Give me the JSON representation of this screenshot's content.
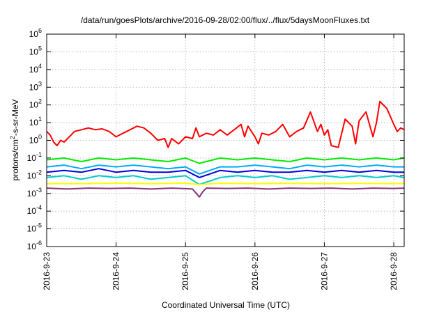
{
  "chart_data": {
    "type": "line",
    "title": "/data/run/goesPlots/archive/2016-09-28/02:00/flux/../flux/5daysMoonFluxes.txt",
    "xlabel": "Coordinated Universal Time (UTC)",
    "ylabel": {
      "pre": "protons/cm",
      "sup": "2",
      "post": "-s-sr-MeV"
    },
    "yscale": "log",
    "ylim": [
      -6,
      6
    ],
    "xlim": [
      0,
      5.15
    ],
    "grid": true,
    "legend": "none",
    "yticks": [
      {
        "base": "10",
        "exp": "6",
        "value": 6
      },
      {
        "base": "10",
        "exp": "5",
        "value": 5
      },
      {
        "base": "10",
        "exp": "4",
        "value": 4
      },
      {
        "base": "10",
        "exp": "3",
        "value": 3
      },
      {
        "base": "10",
        "exp": "2",
        "value": 2
      },
      {
        "base": "10",
        "exp": "1",
        "value": 1
      },
      {
        "base": "10",
        "exp": "0",
        "value": 0
      },
      {
        "base": "10",
        "exp": "-1",
        "value": -1
      },
      {
        "base": "10",
        "exp": "-2",
        "value": -2
      },
      {
        "base": "10",
        "exp": "-3",
        "value": -3
      },
      {
        "base": "10",
        "exp": "-4",
        "value": -4
      },
      {
        "base": "10",
        "exp": "-5",
        "value": -5
      },
      {
        "base": "10",
        "exp": "-6",
        "value": -6
      }
    ],
    "xticks": [
      {
        "label": "2016-9-23",
        "value": 0
      },
      {
        "label": "2016-9-24",
        "value": 1
      },
      {
        "label": "2016-9-25",
        "value": 2
      },
      {
        "label": "2016-9-26",
        "value": 3
      },
      {
        "label": "2016-9-27",
        "value": 4
      },
      {
        "label": "2016-9-28",
        "value": 5
      }
    ],
    "series": [
      {
        "color": "#ff0000",
        "x": [
          0,
          0.05,
          0.1,
          0.15,
          0.2,
          0.25,
          0.3,
          0.35,
          0.4,
          0.5,
          0.6,
          0.7,
          0.8,
          0.9,
          1.0,
          1.1,
          1.2,
          1.3,
          1.4,
          1.5,
          1.6,
          1.7,
          1.75,
          1.8,
          1.9,
          2.0,
          2.1,
          2.15,
          2.2,
          2.3,
          2.4,
          2.5,
          2.6,
          2.7,
          2.8,
          2.85,
          2.9,
          3.0,
          3.05,
          3.1,
          3.2,
          3.3,
          3.4,
          3.5,
          3.6,
          3.7,
          3.8,
          3.9,
          3.95,
          4.0,
          4.05,
          4.1,
          4.2,
          4.3,
          4.4,
          4.45,
          4.5,
          4.6,
          4.7,
          4.75,
          4.8,
          4.9,
          5.0,
          5.05,
          5.1,
          5.15
        ],
        "log10": [
          0.5,
          0.3,
          -0.1,
          -0.3,
          0.0,
          -0.1,
          0.1,
          0.3,
          0.5,
          0.6,
          0.7,
          0.6,
          0.65,
          0.5,
          0.2,
          0.4,
          0.6,
          0.8,
          0.7,
          0.4,
          0.0,
          0.1,
          -0.4,
          0.1,
          -0.2,
          0.2,
          0.1,
          0.7,
          0.2,
          0.4,
          0.3,
          0.6,
          0.3,
          0.6,
          0.9,
          0.2,
          0.8,
          0.2,
          -0.2,
          0.4,
          0.3,
          0.5,
          0.9,
          0.2,
          0.5,
          0.7,
          1.6,
          0.5,
          0.9,
          0.3,
          0.6,
          -0.3,
          -0.4,
          1.2,
          0.8,
          -0.2,
          1.1,
          1.6,
          0.2,
          1.0,
          2.2,
          1.8,
          0.9,
          0.5,
          0.7,
          0.6
        ]
      },
      {
        "color": "#00ee00",
        "x": [
          0,
          0.25,
          0.5,
          0.75,
          1.0,
          1.25,
          1.5,
          1.75,
          2.0,
          2.2,
          2.5,
          2.75,
          3.0,
          3.25,
          3.5,
          3.75,
          4.0,
          4.25,
          4.5,
          4.75,
          5.0,
          5.15
        ],
        "log10": [
          -1.1,
          -1.0,
          -1.2,
          -1.0,
          -1.1,
          -1.0,
          -1.1,
          -1.2,
          -1.0,
          -1.3,
          -1.0,
          -1.1,
          -1.0,
          -1.1,
          -1.2,
          -1.0,
          -1.1,
          -1.0,
          -1.1,
          -1.0,
          -1.1,
          -1.0
        ]
      },
      {
        "color": "#00aaff",
        "x": [
          0,
          0.25,
          0.5,
          0.75,
          1.0,
          1.25,
          1.5,
          1.75,
          2.0,
          2.2,
          2.5,
          2.75,
          3.0,
          3.25,
          3.5,
          3.75,
          4.0,
          4.25,
          4.5,
          4.75,
          5.0,
          5.15
        ],
        "log10": [
          -1.5,
          -1.4,
          -1.6,
          -1.4,
          -1.5,
          -1.4,
          -1.5,
          -1.6,
          -1.5,
          -1.9,
          -1.5,
          -1.5,
          -1.4,
          -1.5,
          -1.6,
          -1.4,
          -1.5,
          -1.4,
          -1.5,
          -1.4,
          -1.5,
          -1.5
        ]
      },
      {
        "color": "#0000dd",
        "x": [
          0,
          0.25,
          0.5,
          0.75,
          1.0,
          1.25,
          1.5,
          1.75,
          2.0,
          2.2,
          2.5,
          2.75,
          3.0,
          3.25,
          3.5,
          3.75,
          4.0,
          4.25,
          4.5,
          4.75,
          5.0,
          5.15
        ],
        "log10": [
          -1.8,
          -1.7,
          -1.8,
          -1.6,
          -1.8,
          -1.7,
          -1.8,
          -1.8,
          -1.7,
          -2.1,
          -1.7,
          -1.8,
          -1.7,
          -1.8,
          -1.8,
          -1.7,
          -1.8,
          -1.7,
          -1.8,
          -1.7,
          -1.8,
          -1.8
        ]
      },
      {
        "color": "#00cccc",
        "x": [
          0,
          0.25,
          0.5,
          0.75,
          1.0,
          1.25,
          1.5,
          1.75,
          2.0,
          2.2,
          2.5,
          2.75,
          3.0,
          3.25,
          3.5,
          3.75,
          4.0,
          4.25,
          4.5,
          4.75,
          5.0,
          5.15
        ],
        "log10": [
          -2.1,
          -2.0,
          -2.2,
          -2.0,
          -2.1,
          -2.0,
          -2.2,
          -2.1,
          -2.0,
          -2.5,
          -2.1,
          -2.0,
          -2.1,
          -2.0,
          -2.2,
          -2.1,
          -2.0,
          -2.1,
          -2.0,
          -2.1,
          -2.0,
          -2.1
        ]
      },
      {
        "color": "#ffff00",
        "x": [
          0,
          0.5,
          1.0,
          1.5,
          2.0,
          2.2,
          2.5,
          3.0,
          3.5,
          4.0,
          4.5,
          5.0,
          5.15
        ],
        "log10": [
          -2.45,
          -2.45,
          -2.42,
          -2.45,
          -2.42,
          -2.5,
          -2.43,
          -2.45,
          -2.43,
          -2.45,
          -2.43,
          -2.45,
          -2.44
        ]
      },
      {
        "color": "#883377",
        "x": [
          0,
          0.3,
          0.6,
          0.9,
          1.2,
          1.5,
          1.8,
          2.1,
          2.2,
          2.25,
          2.3,
          2.6,
          2.9,
          3.2,
          3.5,
          3.8,
          4.1,
          4.4,
          4.7,
          5.0,
          5.15
        ],
        "log10": [
          -2.7,
          -2.75,
          -2.7,
          -2.72,
          -2.7,
          -2.75,
          -2.7,
          -2.75,
          -3.2,
          -2.9,
          -2.7,
          -2.72,
          -2.7,
          -2.75,
          -2.7,
          -2.72,
          -2.7,
          -2.75,
          -2.7,
          -2.72,
          -2.7
        ]
      }
    ]
  }
}
